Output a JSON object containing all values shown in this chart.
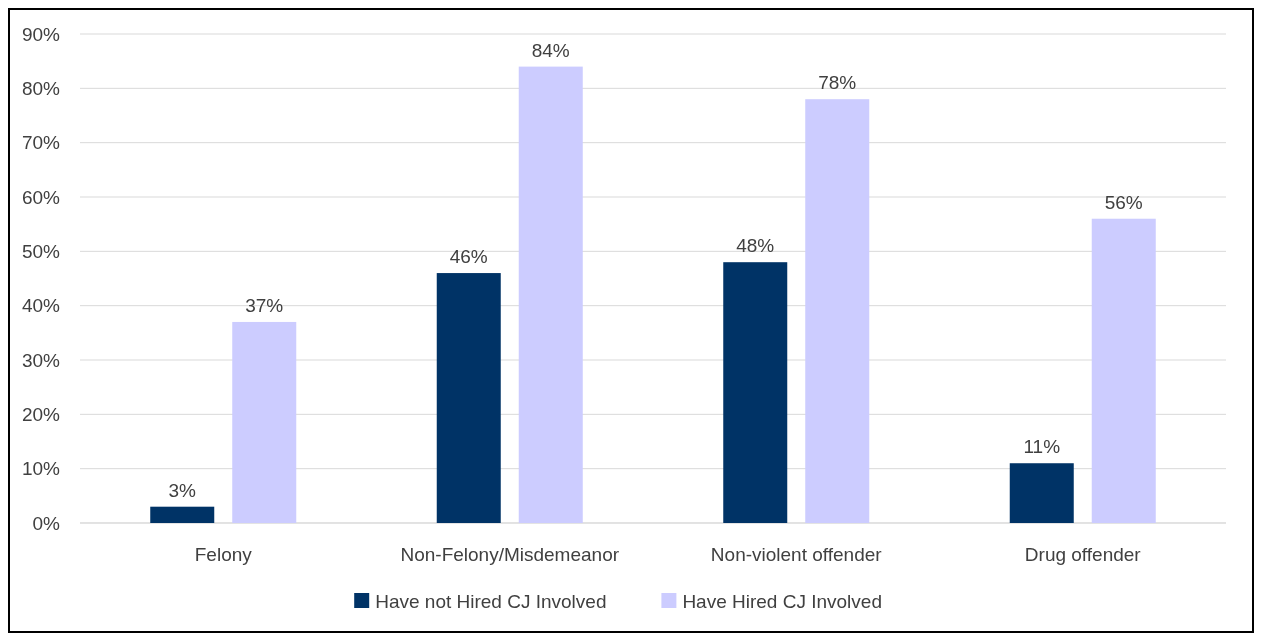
{
  "chart_data": {
    "type": "bar",
    "categories": [
      "Felony",
      "Non-Felony/Misdemeanor",
      "Non-violent offender",
      "Drug offender"
    ],
    "series": [
      {
        "name": "Have not Hired CJ Involved",
        "color": "#003366",
        "values": [
          3,
          46,
          48,
          11
        ],
        "value_labels": [
          "3%",
          "46%",
          "48%",
          "11%"
        ]
      },
      {
        "name": "Have Hired CJ Involved",
        "color": "#ccccff",
        "values": [
          37,
          84,
          78,
          56
        ],
        "value_labels": [
          "37%",
          "84%",
          "78%",
          "56%"
        ]
      }
    ],
    "ylim": [
      0,
      90
    ],
    "yticks": [
      {
        "value": 0,
        "label": "0%"
      },
      {
        "value": 10,
        "label": "10%"
      },
      {
        "value": 20,
        "label": "20%"
      },
      {
        "value": 30,
        "label": "30%"
      },
      {
        "value": 40,
        "label": "40%"
      },
      {
        "value": 50,
        "label": "50%"
      },
      {
        "value": 60,
        "label": "60%"
      },
      {
        "value": 70,
        "label": "70%"
      },
      {
        "value": 80,
        "label": "80%"
      },
      {
        "value": 90,
        "label": "90%"
      }
    ],
    "grid": "y",
    "legend": "bottom"
  }
}
